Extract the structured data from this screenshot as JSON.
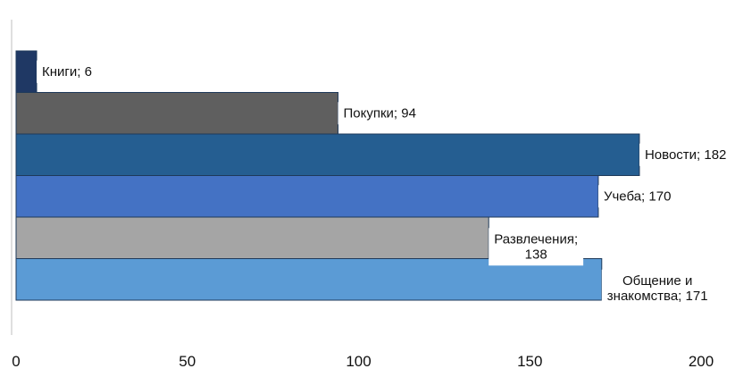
{
  "chart_data": {
    "type": "bar",
    "orientation": "horizontal",
    "categories": [
      "Книги",
      "Покупки",
      "Новости",
      "Учеба",
      "Развлечения",
      "Общение и знакомства"
    ],
    "values": [
      6,
      94,
      182,
      170,
      138,
      171
    ],
    "data_labels": [
      [
        "Книги; 6"
      ],
      [
        "Покупки; 94"
      ],
      [
        "Новости; 182"
      ],
      [
        "Учеба; 170"
      ],
      [
        "Развлечения;",
        "138"
      ],
      [
        "Общение и",
        "знакомства; 171"
      ]
    ],
    "bar_colors": [
      "#1F3864",
      "#5F5F5F",
      "#255E91",
      "#4472C4",
      "#A5A5A5",
      "#5B9BD5"
    ],
    "xlim": [
      0,
      200
    ],
    "x_ticks": [
      0,
      50,
      100,
      150,
      200
    ],
    "x_tick_labels": [
      "0",
      "50",
      "100",
      "150",
      "200"
    ],
    "grid": false,
    "legend": "none",
    "title": "",
    "xlabel": "",
    "ylabel": ""
  }
}
